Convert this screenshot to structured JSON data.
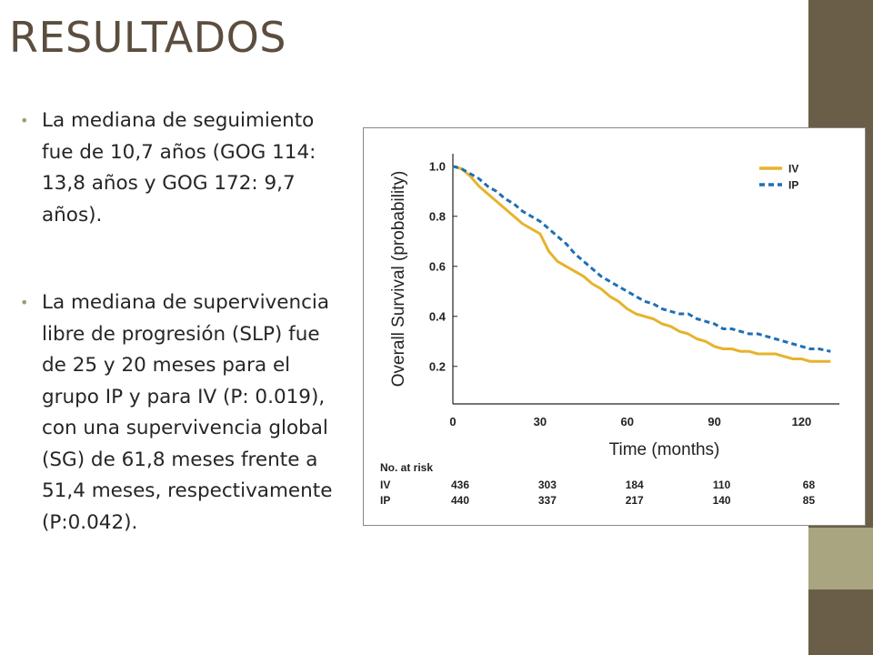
{
  "slide": {
    "title": "RESULTADOS",
    "bullets": [
      "La mediana de seguimiento fue de 10,7 años (GOG 114: 13,8 años y GOG 172: 9,7 años).",
      "La mediana de supervivencia libre de progresión (SLP) fue de 25 y 20 meses para el grupo IP y para IV (P: 0.019), con una supervivencia global (SG) de 61,8 meses frente a 51,4 meses, respectivamente (P:0.042)."
    ]
  },
  "colors": {
    "title": "#5b4e3f",
    "accent_dark": "#6a5e48",
    "accent_light": "#a8a580",
    "iv_line": "#e6b32c",
    "ip_line": "#1f6fb5"
  },
  "chart_data": {
    "type": "line",
    "xlabel": "Time (months)",
    "ylabel": "Overall Survival (probability)",
    "xlim": [
      0,
      133
    ],
    "ylim": [
      0.05,
      1.05
    ],
    "xticks": [
      "0",
      "30",
      "60",
      "90",
      "120"
    ],
    "xtick_values": [
      0,
      30,
      60,
      90,
      120
    ],
    "yticks": [
      "1.0",
      "0.8",
      "0.6",
      "0.4",
      "0.2"
    ],
    "ytick_values": [
      1.0,
      0.8,
      0.6,
      0.4,
      0.2
    ],
    "legend_position": "top-right",
    "series": [
      {
        "name": "IV",
        "style": "solid",
        "points": [
          [
            0,
            1.0
          ],
          [
            3,
            0.99
          ],
          [
            6,
            0.96
          ],
          [
            9,
            0.92
          ],
          [
            12,
            0.89
          ],
          [
            15,
            0.86
          ],
          [
            18,
            0.83
          ],
          [
            21,
            0.8
          ],
          [
            24,
            0.77
          ],
          [
            27,
            0.75
          ],
          [
            30,
            0.73
          ],
          [
            33,
            0.66
          ],
          [
            36,
            0.62
          ],
          [
            39,
            0.6
          ],
          [
            42,
            0.58
          ],
          [
            45,
            0.56
          ],
          [
            48,
            0.53
          ],
          [
            51,
            0.51
          ],
          [
            54,
            0.48
          ],
          [
            57,
            0.46
          ],
          [
            60,
            0.43
          ],
          [
            63,
            0.41
          ],
          [
            66,
            0.4
          ],
          [
            69,
            0.39
          ],
          [
            72,
            0.37
          ],
          [
            75,
            0.36
          ],
          [
            78,
            0.34
          ],
          [
            81,
            0.33
          ],
          [
            84,
            0.31
          ],
          [
            87,
            0.3
          ],
          [
            90,
            0.28
          ],
          [
            93,
            0.27
          ],
          [
            96,
            0.27
          ],
          [
            99,
            0.26
          ],
          [
            102,
            0.26
          ],
          [
            105,
            0.25
          ],
          [
            108,
            0.25
          ],
          [
            111,
            0.25
          ],
          [
            114,
            0.24
          ],
          [
            117,
            0.23
          ],
          [
            120,
            0.23
          ],
          [
            123,
            0.22
          ],
          [
            126,
            0.22
          ],
          [
            130,
            0.22
          ]
        ]
      },
      {
        "name": "IP",
        "style": "dashed",
        "points": [
          [
            0,
            1.0
          ],
          [
            3,
            0.99
          ],
          [
            6,
            0.97
          ],
          [
            9,
            0.95
          ],
          [
            12,
            0.92
          ],
          [
            15,
            0.9
          ],
          [
            18,
            0.87
          ],
          [
            21,
            0.85
          ],
          [
            24,
            0.82
          ],
          [
            27,
            0.8
          ],
          [
            30,
            0.78
          ],
          [
            33,
            0.75
          ],
          [
            36,
            0.72
          ],
          [
            39,
            0.69
          ],
          [
            42,
            0.65
          ],
          [
            45,
            0.62
          ],
          [
            48,
            0.59
          ],
          [
            51,
            0.56
          ],
          [
            54,
            0.54
          ],
          [
            57,
            0.52
          ],
          [
            60,
            0.5
          ],
          [
            63,
            0.48
          ],
          [
            66,
            0.46
          ],
          [
            69,
            0.45
          ],
          [
            72,
            0.43
          ],
          [
            75,
            0.42
          ],
          [
            78,
            0.41
          ],
          [
            81,
            0.41
          ],
          [
            84,
            0.39
          ],
          [
            87,
            0.38
          ],
          [
            90,
            0.37
          ],
          [
            93,
            0.35
          ],
          [
            96,
            0.35
          ],
          [
            99,
            0.34
          ],
          [
            102,
            0.33
          ],
          [
            105,
            0.33
          ],
          [
            108,
            0.32
          ],
          [
            111,
            0.31
          ],
          [
            114,
            0.3
          ],
          [
            117,
            0.29
          ],
          [
            120,
            0.28
          ],
          [
            123,
            0.27
          ],
          [
            126,
            0.27
          ],
          [
            130,
            0.26
          ]
        ]
      }
    ],
    "risk_table": {
      "header": "No. at risk",
      "times": [
        0,
        30,
        60,
        90,
        120
      ],
      "rows": [
        {
          "label": "IV",
          "values": [
            "436",
            "303",
            "184",
            "110",
            "68"
          ]
        },
        {
          "label": "IP",
          "values": [
            "440",
            "337",
            "217",
            "140",
            "85"
          ]
        }
      ]
    }
  }
}
